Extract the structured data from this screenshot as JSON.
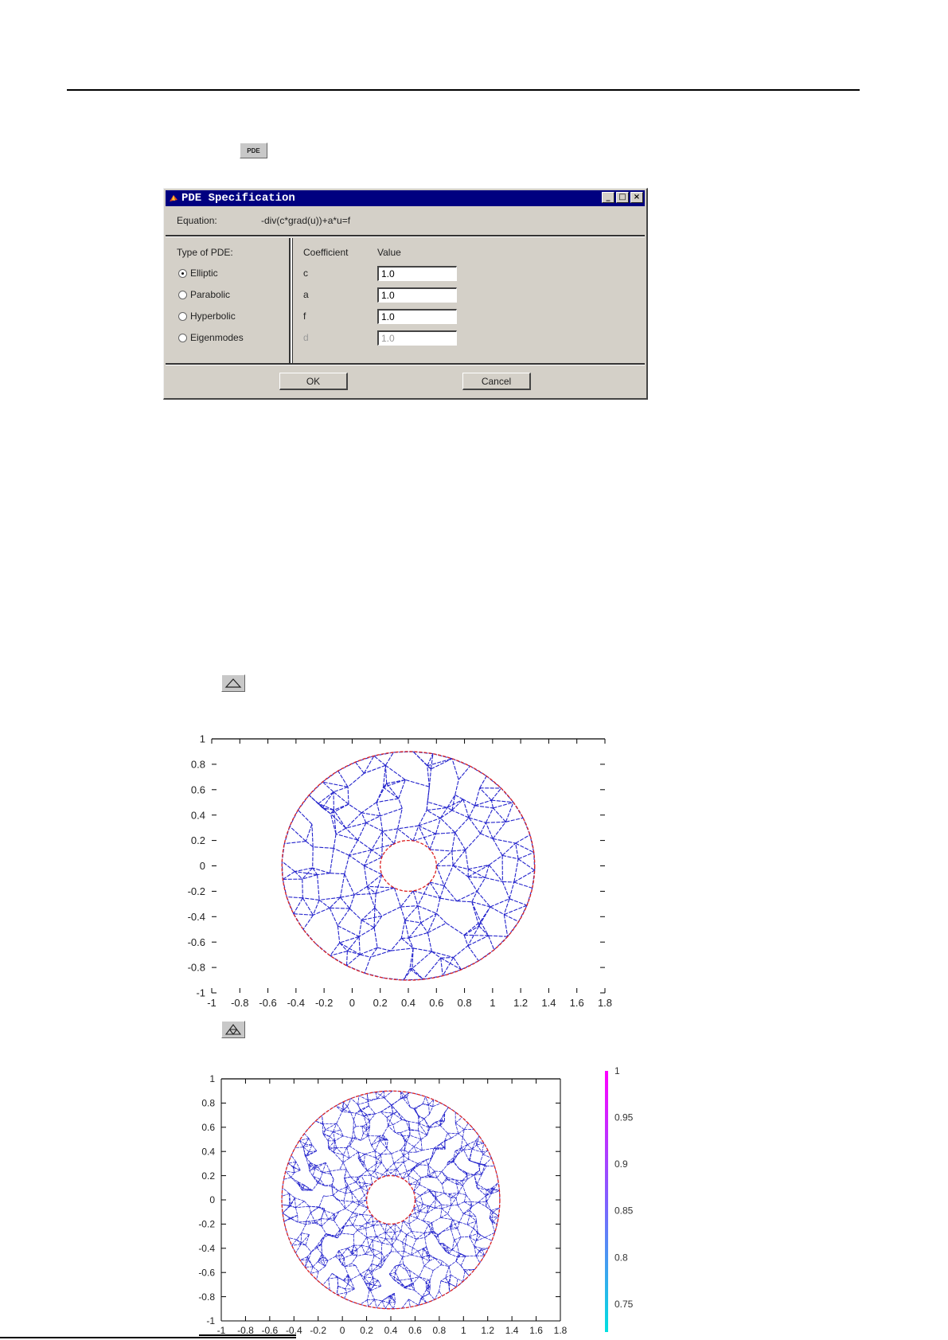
{
  "toolbar": {
    "pde_button_label": "PDE",
    "init_mesh_icon": "triangle-mesh-icon",
    "refine_mesh_icon": "refine-mesh-icon"
  },
  "dialog": {
    "title": "PDE Specification",
    "equation_label": "Equation:",
    "equation_value": "-div(c*grad(u))+a*u=f",
    "type_label": "Type of PDE:",
    "types": [
      {
        "label": "Elliptic",
        "selected": true
      },
      {
        "label": "Parabolic",
        "selected": false
      },
      {
        "label": "Hyperbolic",
        "selected": false
      },
      {
        "label": "Eigenmodes",
        "selected": false
      }
    ],
    "coef_header": "Coefficient",
    "value_header": "Value",
    "coefficients": [
      {
        "name": "c",
        "value": "1.0",
        "disabled": false
      },
      {
        "name": "a",
        "value": "1.0",
        "disabled": false
      },
      {
        "name": "f",
        "value": "1.0",
        "disabled": false
      },
      {
        "name": "d",
        "value": "1.0",
        "disabled": true
      }
    ],
    "ok_label": "OK",
    "cancel_label": "Cancel",
    "title_bar_color": "#000080"
  },
  "chart_data": [
    {
      "type": "mesh",
      "description": "annular triangular mesh, coarse",
      "x_ticks": [
        "-1",
        "-0.8",
        "-0.6",
        "-0.4",
        "-0.2",
        "0",
        "0.2",
        "0.4",
        "0.6",
        "0.8",
        "1",
        "1.2",
        "1.4",
        "1.6",
        "1.8"
      ],
      "y_ticks": [
        "1",
        "0.8",
        "0.6",
        "0.4",
        "0.2",
        "0",
        "-0.2",
        "-0.4",
        "-0.6",
        "-0.8",
        "-1"
      ],
      "xlim": [
        -1,
        1.8
      ],
      "ylim": [
        -1,
        1
      ],
      "outer_radius": 0.9,
      "inner_radius": 0.2,
      "center": [
        0.4,
        0
      ],
      "mesh_color": "#2222cc",
      "boundary_color": "#dd2222"
    },
    {
      "type": "mesh",
      "description": "annular triangular mesh, refined",
      "x_ticks": [
        "-1",
        "-0.8",
        "-0.6",
        "-0.4",
        "-0.2",
        "0",
        "0.2",
        "0.4",
        "0.6",
        "0.8",
        "1",
        "1.2",
        "1.4",
        "1.6",
        "1.8"
      ],
      "y_ticks": [
        "1",
        "0.8",
        "0.6",
        "0.4",
        "0.2",
        "0",
        "-0.2",
        "-0.4",
        "-0.6",
        "-0.8",
        "-1"
      ],
      "xlim": [
        -1,
        1.8
      ],
      "ylim": [
        -1,
        1
      ],
      "outer_radius": 0.9,
      "inner_radius": 0.2,
      "center": [
        0.4,
        0
      ],
      "mesh_color": "#2222cc",
      "boundary_color": "#dd2222",
      "colorbar": {
        "ticks": [
          "1",
          "0.95",
          "0.9",
          "0.85",
          "0.8",
          "0.75"
        ],
        "range": [
          0.72,
          1
        ],
        "colors": [
          "#00e0e0",
          "#8060ff",
          "#ff00ff"
        ]
      }
    }
  ]
}
